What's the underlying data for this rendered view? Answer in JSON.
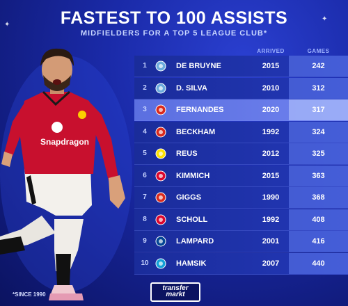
{
  "header": {
    "title": "FASTEST TO 100 ASSISTS",
    "subtitle": "MIDFIELDERS FOR A TOP 5 LEAGUE CLUB*"
  },
  "columns": {
    "arrived": "ARRIVED",
    "games": "GAMES"
  },
  "rows": [
    {
      "rank": "1",
      "club": "man-city-crest",
      "name": "DE BRUYNE",
      "arrived": "2015",
      "games": "242",
      "highlight": false
    },
    {
      "rank": "2",
      "club": "man-city-crest",
      "name": "D. SILVA",
      "arrived": "2010",
      "games": "312",
      "highlight": false
    },
    {
      "rank": "3",
      "club": "man-united-crest",
      "name": "FERNANDES",
      "arrived": "2020",
      "games": "317",
      "highlight": true
    },
    {
      "rank": "4",
      "club": "man-united-crest",
      "name": "BECKHAM",
      "arrived": "1992",
      "games": "324",
      "highlight": false
    },
    {
      "rank": "5",
      "club": "dortmund-crest",
      "name": "REUS",
      "arrived": "2012",
      "games": "325",
      "highlight": false
    },
    {
      "rank": "6",
      "club": "bayern-crest",
      "name": "KIMMICH",
      "arrived": "2015",
      "games": "363",
      "highlight": false
    },
    {
      "rank": "7",
      "club": "man-united-crest",
      "name": "GIGGS",
      "arrived": "1990",
      "games": "368",
      "highlight": false
    },
    {
      "rank": "8",
      "club": "bayern-crest",
      "name": "SCHOLL",
      "arrived": "1992",
      "games": "408",
      "highlight": false
    },
    {
      "rank": "9",
      "club": "chelsea-crest",
      "name": "LAMPARD",
      "arrived": "2001",
      "games": "416",
      "highlight": false
    },
    {
      "rank": "10",
      "club": "napoli-crest",
      "name": "HAMSIK",
      "arrived": "2007",
      "games": "440",
      "highlight": false
    }
  ],
  "crest_colors": {
    "man-city-crest": "#6cabdd",
    "man-united-crest": "#da291c",
    "dortmund-crest": "#fde100",
    "bayern-crest": "#dc052d",
    "chelsea-crest": "#034694",
    "napoli-crest": "#12a0d7"
  },
  "player": {
    "shirt_sponsor": "Snapdragon"
  },
  "footer": {
    "footnote": "*SINCE 1990",
    "logo_line1": "transfer",
    "logo_line2": "markt"
  }
}
